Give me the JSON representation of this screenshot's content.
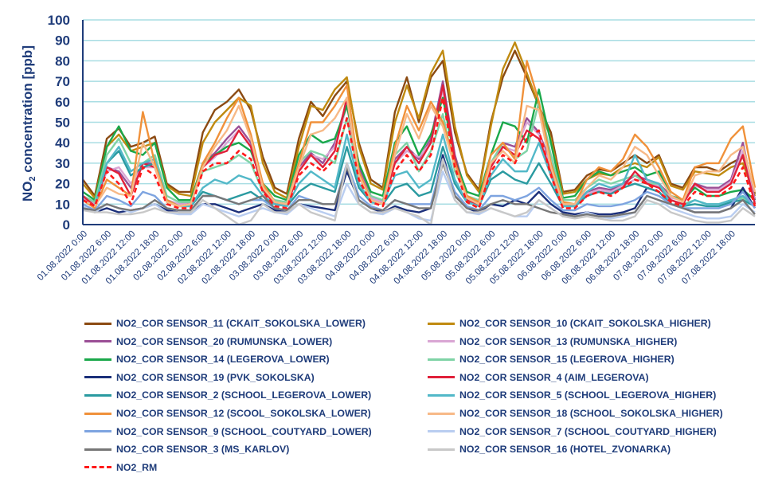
{
  "chart_data": {
    "type": "line",
    "title": "",
    "ylabel_main": "NO",
    "ylabel_sub": "2",
    "ylabel_rest": " concentration [ppb]",
    "ylabel": "NO2 concentration [ppb]",
    "xlabel": "",
    "ylim": [
      0,
      100
    ],
    "yticks": [
      "0",
      "10",
      "20",
      "30",
      "40",
      "50",
      "60",
      "70",
      "80",
      "90",
      "100"
    ],
    "grid": true,
    "legend_position": "bottom",
    "x_hours": [
      0,
      3,
      6,
      9,
      12,
      15,
      18,
      21,
      24,
      27,
      30,
      33,
      36,
      39,
      42,
      45,
      48,
      51,
      54,
      57,
      60,
      63,
      66,
      69,
      72,
      75,
      78,
      81,
      84,
      87,
      90,
      93,
      96,
      99,
      102,
      105,
      108,
      111,
      114,
      117,
      120,
      123,
      126,
      129,
      132,
      135,
      138,
      141,
      144,
      147,
      150,
      153,
      156,
      159,
      162,
      165,
      168
    ],
    "xticks": [
      "01.08.2022 0:00",
      "01.08.2022 6:00",
      "01.08.2022 12:00",
      "01.08.2022 18:00",
      "02.08.2022 0:00",
      "02.08.2022 6:00",
      "02.08.2022 12:00",
      "02.08.2022 18:00",
      "03.08.2022 0:00",
      "03.08.2022 6:00",
      "03.08.2022 12:00",
      "03.08.2022 18:00",
      "04.08.2022 0:00",
      "04.08.2022 6:00",
      "04.08.2022 12:00",
      "04.08.2022 18:00",
      "05.08.2022 0:00",
      "05.08.2022 6:00",
      "05.08.2022 12:00",
      "05.08.2022 18:00",
      "06.08.2022 0:00",
      "06.08.2022 6:00",
      "06.08.2022 12:00",
      "06.08.2022 18:00",
      "07.08.2022 0:00",
      "07.08.2022 6:00",
      "07.08.2022 12:00",
      "07.08.2022 18:00"
    ],
    "series": [
      {
        "name": "NO2_COR SENSOR_11 (CKAIT_SOKOLSKA_LOWER)",
        "color": "#8b4a12",
        "dash": false,
        "values": [
          22,
          14,
          42,
          47,
          38,
          40,
          43,
          20,
          16,
          16,
          45,
          56,
          60,
          66,
          56,
          33,
          18,
          15,
          42,
          60,
          53,
          63,
          70,
          40,
          22,
          18,
          55,
          72,
          50,
          72,
          80,
          45,
          25,
          17,
          50,
          72,
          85,
          72,
          58,
          45,
          16,
          17,
          24,
          27,
          26,
          30,
          34,
          30,
          34,
          20,
          18,
          28,
          28,
          26,
          30,
          33,
          15
        ]
      },
      {
        "name": "NO2_COR SENSOR_10 (CKAIT_SOKOLSKA_HIGHER)",
        "color": "#c08a10",
        "dash": false,
        "values": [
          20,
          13,
          38,
          44,
          36,
          38,
          40,
          19,
          15,
          14,
          40,
          50,
          56,
          62,
          58,
          30,
          16,
          13,
          38,
          58,
          56,
          66,
          72,
          38,
          20,
          17,
          50,
          68,
          52,
          74,
          85,
          48,
          24,
          16,
          48,
          76,
          89,
          74,
          58,
          42,
          15,
          16,
          22,
          25,
          24,
          28,
          30,
          28,
          33,
          19,
          17,
          26,
          25,
          24,
          28,
          30,
          14
        ]
      },
      {
        "name": "NO2_COR SENSOR_20 (RUMUNSKA_LOWER)",
        "color": "#9b4f96",
        "dash": false,
        "values": [
          14,
          10,
          28,
          26,
          18,
          30,
          30,
          12,
          10,
          11,
          30,
          35,
          42,
          48,
          40,
          20,
          11,
          10,
          28,
          35,
          30,
          40,
          60,
          28,
          14,
          11,
          32,
          38,
          32,
          42,
          70,
          34,
          14,
          10,
          30,
          40,
          38,
          52,
          45,
          30,
          10,
          10,
          16,
          18,
          17,
          20,
          24,
          22,
          20,
          14,
          12,
          20,
          18,
          18,
          22,
          40,
          12
        ]
      },
      {
        "name": "NO2_COR SENSOR_13 (RUMUNSKA_HIGHER)",
        "color": "#d9a6d4",
        "dash": false,
        "values": [
          13,
          10,
          26,
          28,
          20,
          28,
          28,
          12,
          10,
          10,
          28,
          33,
          40,
          46,
          38,
          18,
          10,
          10,
          26,
          34,
          32,
          38,
          58,
          26,
          13,
          11,
          30,
          36,
          33,
          40,
          66,
          32,
          13,
          10,
          28,
          38,
          36,
          50,
          44,
          28,
          10,
          10,
          15,
          17,
          16,
          19,
          22,
          21,
          19,
          13,
          12,
          19,
          17,
          17,
          21,
          36,
          11
        ]
      },
      {
        "name": "NO2_COR SENSOR_14 (LEGEROVA_LOWER)",
        "color": "#1aa84a",
        "dash": false,
        "values": [
          16,
          12,
          38,
          48,
          36,
          34,
          40,
          18,
          12,
          12,
          30,
          34,
          38,
          40,
          36,
          20,
          14,
          12,
          34,
          44,
          40,
          42,
          58,
          30,
          16,
          14,
          40,
          48,
          34,
          44,
          62,
          32,
          16,
          14,
          34,
          50,
          48,
          40,
          66,
          40,
          13,
          14,
          22,
          26,
          24,
          26,
          28,
          24,
          26,
          14,
          12,
          18,
          14,
          14,
          16,
          17,
          12
        ]
      },
      {
        "name": "NO2_COR SENSOR_15 (LEGEROVA_HIGHER)",
        "color": "#7fd3a6",
        "dash": false,
        "values": [
          14,
          11,
          34,
          42,
          30,
          30,
          34,
          14,
          11,
          11,
          26,
          28,
          30,
          34,
          30,
          16,
          12,
          11,
          30,
          36,
          34,
          30,
          52,
          24,
          14,
          12,
          34,
          40,
          26,
          36,
          54,
          26,
          14,
          12,
          30,
          40,
          32,
          36,
          60,
          34,
          12,
          12,
          18,
          22,
          20,
          22,
          24,
          20,
          20,
          12,
          10,
          12,
          10,
          10,
          12,
          13,
          10
        ]
      },
      {
        "name": "NO2_COR SENSOR_19 (PVK_SOKOLSKA)",
        "color": "#1b2f7a",
        "dash": false,
        "values": [
          8,
          6,
          8,
          6,
          7,
          8,
          10,
          7,
          6,
          6,
          10,
          10,
          8,
          6,
          8,
          10,
          7,
          6,
          10,
          9,
          8,
          7,
          26,
          12,
          8,
          6,
          9,
          7,
          6,
          8,
          34,
          14,
          8,
          6,
          10,
          9,
          12,
          10,
          16,
          10,
          6,
          5,
          6,
          5,
          5,
          6,
          8,
          18,
          16,
          10,
          8,
          6,
          6,
          6,
          8,
          18,
          8
        ]
      },
      {
        "name": "NO2_COR SENSOR_4 (AIM_LEGEROVA)",
        "color": "#e0203a",
        "dash": false,
        "values": [
          14,
          9,
          28,
          25,
          14,
          30,
          28,
          11,
          9,
          10,
          28,
          34,
          36,
          46,
          38,
          17,
          10,
          9,
          26,
          34,
          28,
          36,
          62,
          24,
          12,
          10,
          30,
          38,
          30,
          40,
          68,
          32,
          12,
          9,
          28,
          38,
          34,
          46,
          42,
          26,
          9,
          9,
          14,
          16,
          15,
          18,
          26,
          20,
          18,
          12,
          10,
          20,
          16,
          16,
          20,
          34,
          10
        ]
      },
      {
        "name": "NO2_COR SENSOR_2 (SCHOOL_LEGEROVA_LOWER)",
        "color": "#2a9aa0",
        "dash": false,
        "values": [
          12,
          9,
          30,
          36,
          24,
          28,
          30,
          12,
          9,
          9,
          16,
          14,
          12,
          14,
          16,
          12,
          10,
          9,
          16,
          20,
          18,
          16,
          38,
          18,
          11,
          10,
          18,
          20,
          14,
          16,
          38,
          20,
          11,
          9,
          22,
          26,
          22,
          20,
          30,
          20,
          9,
          9,
          14,
          16,
          15,
          18,
          20,
          18,
          16,
          10,
          9,
          10,
          9,
          9,
          11,
          12,
          9
        ]
      },
      {
        "name": "NO2_COR SENSOR_5 (SCHOOL_LEGEROVA_HIGHER)",
        "color": "#52b8c8",
        "dash": false,
        "values": [
          12,
          9,
          30,
          38,
          26,
          30,
          32,
          12,
          9,
          9,
          18,
          22,
          20,
          24,
          22,
          14,
          10,
          9,
          20,
          26,
          22,
          18,
          44,
          20,
          11,
          10,
          24,
          26,
          18,
          22,
          44,
          22,
          11,
          9,
          24,
          32,
          26,
          26,
          40,
          24,
          9,
          9,
          16,
          20,
          18,
          20,
          34,
          22,
          20,
          10,
          9,
          12,
          10,
          10,
          12,
          14,
          9
        ]
      },
      {
        "name": "NO2_COR SENSOR_12 (SCOOL_SOKOLSKA_LOWER)",
        "color": "#f0913a",
        "dash": false,
        "values": [
          12,
          8,
          22,
          18,
          14,
          55,
          30,
          12,
          9,
          10,
          30,
          40,
          52,
          62,
          44,
          20,
          11,
          10,
          30,
          50,
          50,
          58,
          68,
          26,
          12,
          10,
          38,
          58,
          46,
          60,
          50,
          30,
          14,
          11,
          34,
          40,
          32,
          80,
          60,
          30,
          11,
          10,
          22,
          28,
          26,
          32,
          44,
          38,
          28,
          16,
          12,
          28,
          30,
          30,
          42,
          48,
          18
        ]
      },
      {
        "name": "NO2_COR SENSOR_18 (SCHOOL_SOKOLSKA_HIGHER)",
        "color": "#f7b987",
        "dash": false,
        "values": [
          12,
          9,
          18,
          15,
          14,
          40,
          28,
          11,
          9,
          10,
          28,
          38,
          46,
          58,
          42,
          18,
          11,
          10,
          28,
          44,
          46,
          52,
          62,
          24,
          12,
          10,
          34,
          54,
          42,
          58,
          48,
          28,
          13,
          10,
          30,
          36,
          30,
          58,
          56,
          28,
          10,
          10,
          18,
          24,
          22,
          28,
          38,
          34,
          24,
          14,
          11,
          24,
          26,
          26,
          34,
          38,
          16
        ]
      },
      {
        "name": "NO2_COR SENSOR_9 (SCHOOL_COUTYARD_LOWER)",
        "color": "#7ea4e0",
        "dash": false,
        "values": [
          10,
          7,
          14,
          12,
          9,
          16,
          14,
          8,
          7,
          7,
          14,
          14,
          12,
          10,
          12,
          12,
          8,
          7,
          14,
          12,
          10,
          10,
          30,
          14,
          9,
          7,
          12,
          10,
          10,
          10,
          32,
          16,
          9,
          7,
          14,
          14,
          12,
          14,
          18,
          12,
          7,
          7,
          10,
          9,
          9,
          10,
          12,
          16,
          14,
          10,
          8,
          8,
          8,
          8,
          10,
          16,
          8
        ]
      },
      {
        "name": "NO2_COR SENSOR_7 (SCHOOL_COUTYARD_HIGHER)",
        "color": "#b9cdf0",
        "dash": false,
        "values": [
          9,
          6,
          10,
          8,
          6,
          8,
          10,
          6,
          5,
          5,
          10,
          8,
          6,
          4,
          6,
          8,
          6,
          5,
          10,
          8,
          6,
          4,
          20,
          10,
          6,
          5,
          8,
          6,
          3,
          2,
          26,
          12,
          6,
          5,
          8,
          6,
          4,
          4,
          12,
          8,
          4,
          4,
          6,
          4,
          3,
          4,
          6,
          14,
          12,
          8,
          6,
          4,
          3,
          3,
          4,
          10,
          6
        ]
      },
      {
        "name": "NO2_COR SENSOR_3 (MS_KARLOV)",
        "color": "#777777",
        "dash": false,
        "values": [
          8,
          7,
          10,
          8,
          7,
          8,
          12,
          8,
          7,
          7,
          14,
          14,
          12,
          10,
          12,
          14,
          8,
          7,
          12,
          12,
          10,
          10,
          28,
          12,
          8,
          7,
          12,
          10,
          8,
          8,
          30,
          14,
          8,
          7,
          10,
          12,
          10,
          10,
          8,
          6,
          5,
          4,
          5,
          4,
          4,
          5,
          6,
          14,
          12,
          10,
          8,
          6,
          6,
          6,
          8,
          12,
          5
        ]
      },
      {
        "name": "NO2_COR SENSOR_16 (HOTEL_ZVONARKA)",
        "color": "#c8c8c8",
        "dash": false,
        "values": [
          7,
          6,
          6,
          5,
          5,
          6,
          8,
          6,
          6,
          6,
          12,
          8,
          4,
          0,
          2,
          10,
          6,
          6,
          10,
          6,
          4,
          2,
          30,
          10,
          6,
          6,
          8,
          6,
          4,
          0,
          32,
          12,
          6,
          6,
          8,
          6,
          4,
          6,
          12,
          8,
          4,
          3,
          4,
          3,
          2,
          2,
          4,
          12,
          10,
          6,
          4,
          2,
          1,
          1,
          2,
          8,
          4
        ]
      },
      {
        "name": "NO2_RM",
        "color": "#ff1a1a",
        "dash": true,
        "values": [
          12,
          9,
          26,
          20,
          10,
          28,
          24,
          10,
          8,
          8,
          26,
          30,
          30,
          36,
          32,
          16,
          9,
          8,
          24,
          30,
          26,
          32,
          52,
          22,
          11,
          9,
          26,
          34,
          26,
          34,
          62,
          28,
          11,
          8,
          26,
          34,
          30,
          42,
          46,
          24,
          8,
          8,
          14,
          16,
          14,
          18,
          22,
          20,
          16,
          11,
          9,
          16,
          14,
          14,
          18,
          28,
          9
        ]
      }
    ]
  }
}
